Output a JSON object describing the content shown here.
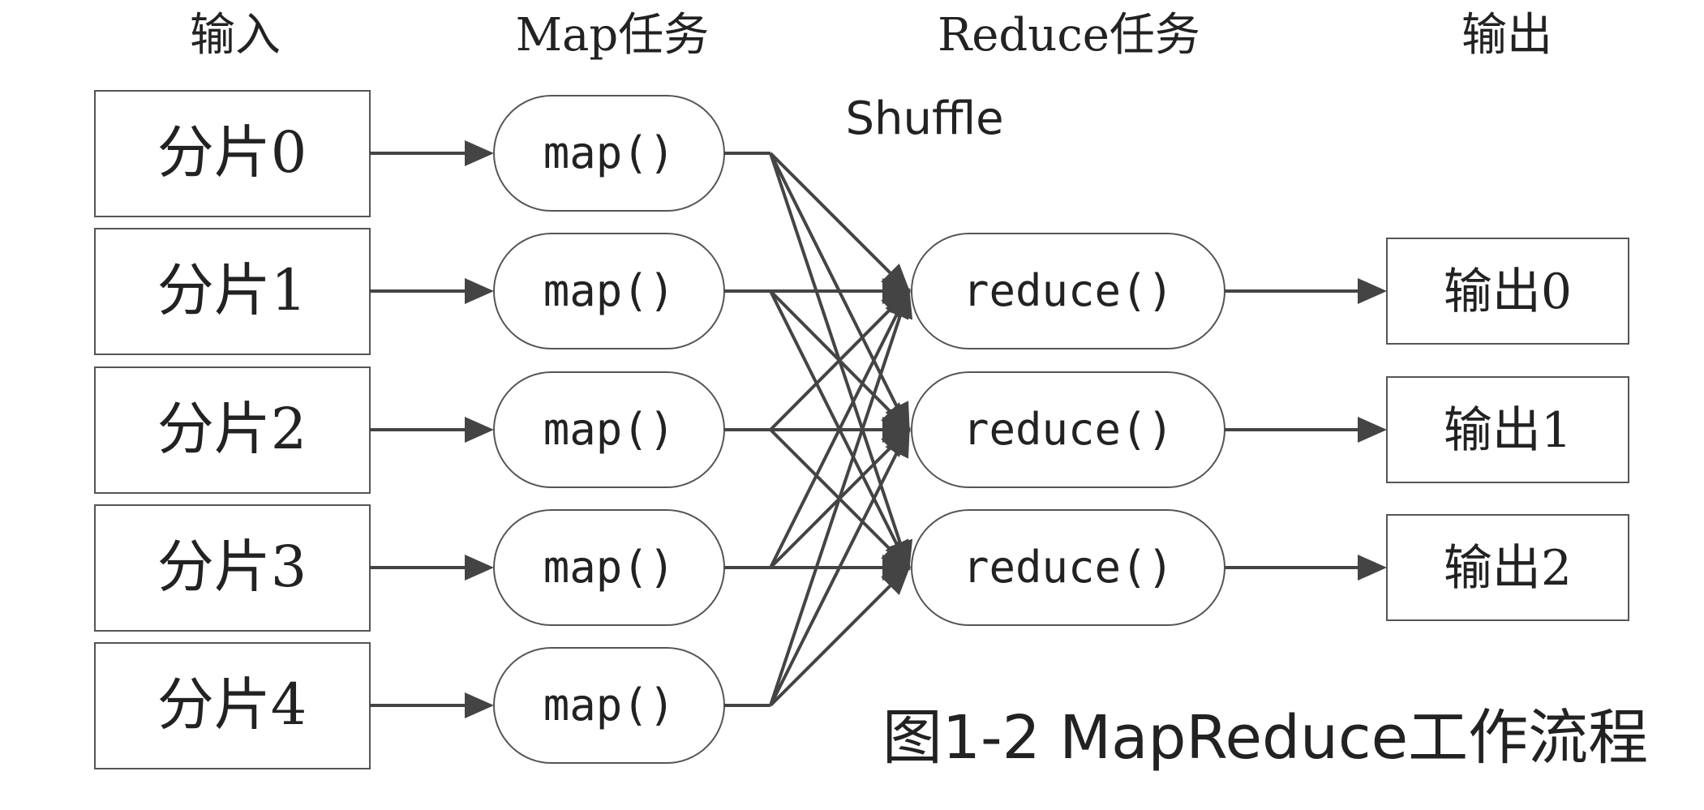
{
  "headers": {
    "input": "输入",
    "map_tasks": "Map任务",
    "reduce_tasks": "Reduce任务",
    "output": "输出"
  },
  "shuffle_label": "Shuffle",
  "splits": [
    "分片0",
    "分片1",
    "分片2",
    "分片3",
    "分片4"
  ],
  "map_label": "map()",
  "reduce_label": "reduce()",
  "outputs": [
    "输出0",
    "输出1",
    "输出2"
  ],
  "caption": "图1-2 MapReduce工作流程",
  "colors": {
    "stroke": "#444444",
    "text": "#222222",
    "background": "#ffffff"
  }
}
